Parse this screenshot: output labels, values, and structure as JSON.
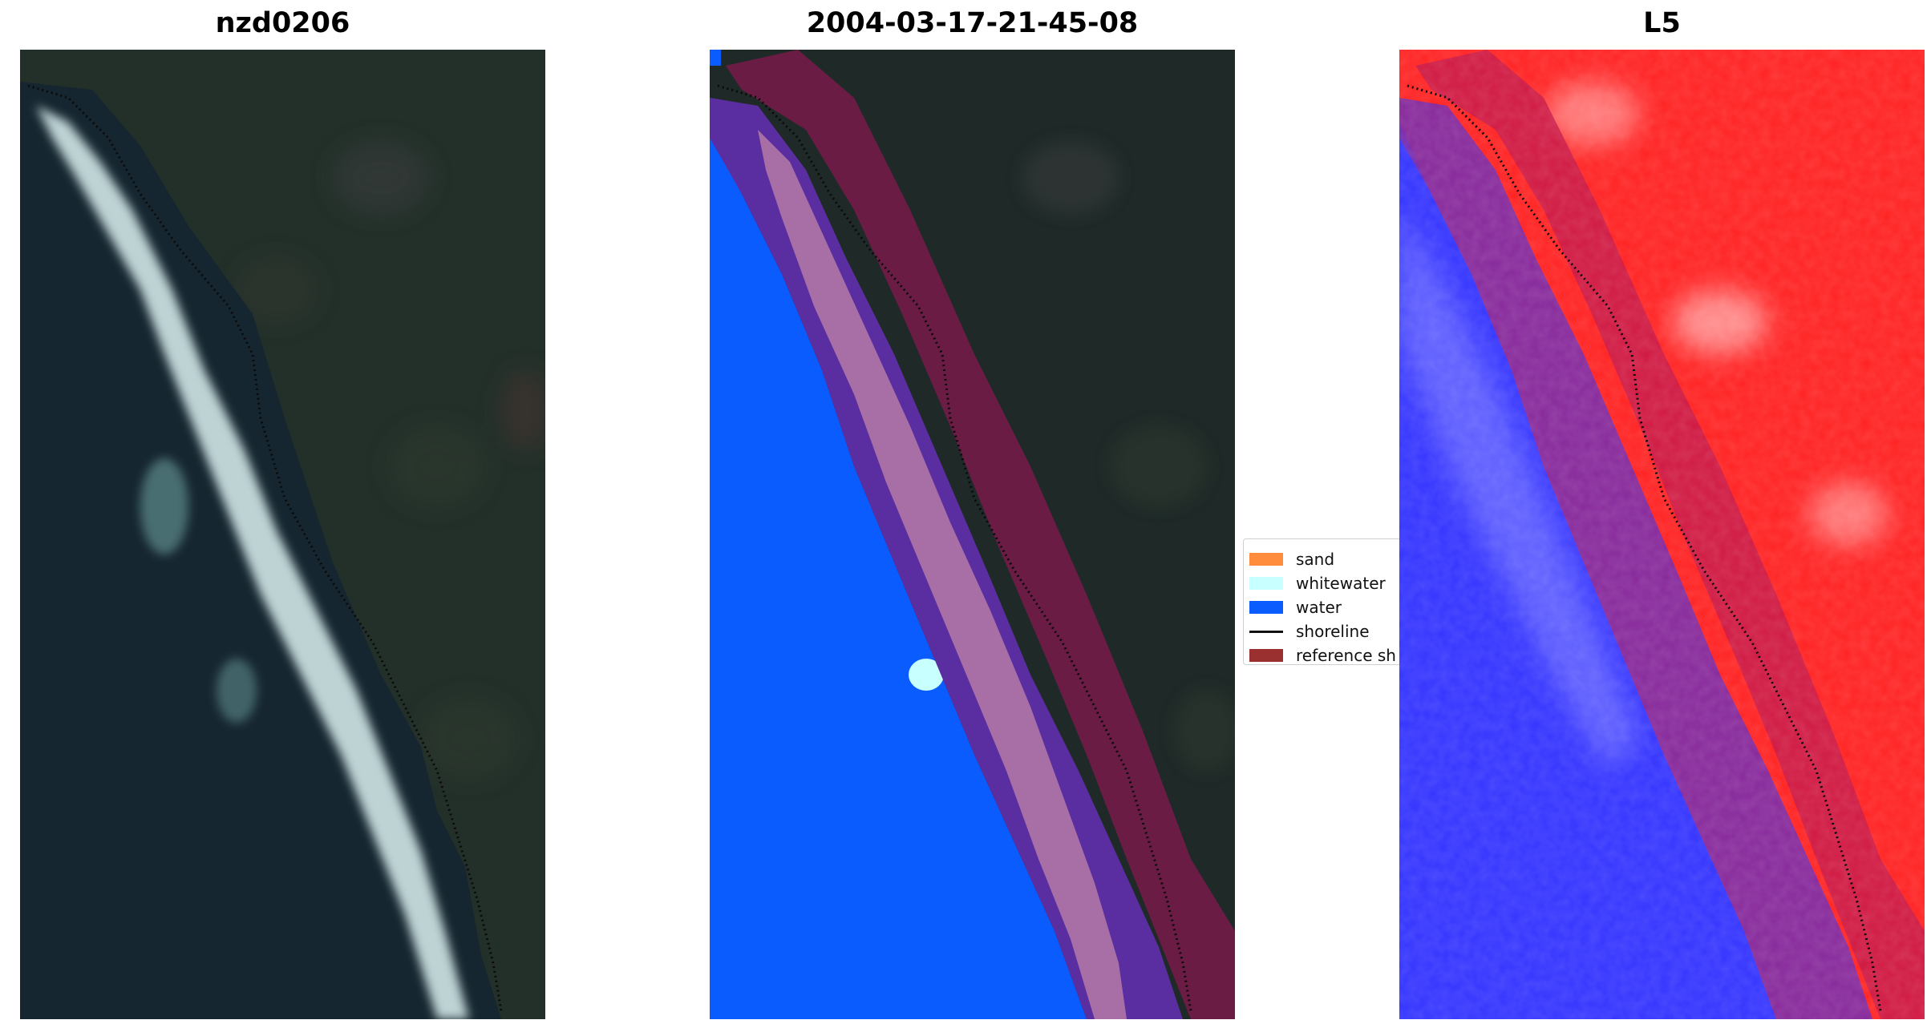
{
  "panels": [
    {
      "title": "nzd0206"
    },
    {
      "title": "2004-03-17-21-45-08"
    },
    {
      "title": "L5"
    }
  ],
  "legend": {
    "items": [
      {
        "label": "sand",
        "color": "#ff8c3c",
        "type": "patch"
      },
      {
        "label": "whitewater",
        "color": "#c8ffff",
        "type": "patch"
      },
      {
        "label": "water",
        "color": "#0a5cff",
        "type": "patch"
      },
      {
        "label": "shoreline",
        "color": "#111111",
        "type": "line"
      },
      {
        "label": "reference sh",
        "color": "#9a3030",
        "type": "patch"
      }
    ]
  },
  "colors": {
    "land_dark": "#1f2a26",
    "ocean_dark": "#1a2a33",
    "water_class": "#0a5cff",
    "buffer_maroon": "#6a1c44",
    "index_red": "#ff2a2a",
    "index_blue": "#3a3aff"
  }
}
